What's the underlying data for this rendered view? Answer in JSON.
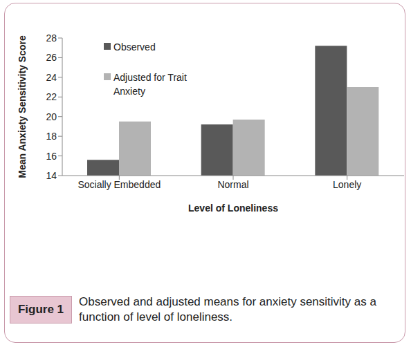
{
  "chart_data": {
    "type": "bar",
    "categories": [
      "Socially Embedded",
      "Normal",
      "Lonely"
    ],
    "series": [
      {
        "name": "Observed",
        "color": "#595959",
        "values": [
          15.6,
          19.2,
          27.2
        ]
      },
      {
        "name": "Adjusted for Trait Anxiety",
        "color": "#b3b3b3",
        "values": [
          19.5,
          19.7,
          23.0
        ]
      }
    ],
    "x_label": "Level of Loneliness",
    "y_label": "Mean Anxiety Sensitivity Score",
    "ylim": [
      14,
      28
    ],
    "yticks": [
      14,
      16,
      18,
      20,
      22,
      24,
      26,
      28
    ],
    "grid": false,
    "legend": "upper left"
  },
  "figure": {
    "label": "Figure 1",
    "caption": "Observed and adjusted means for anxiety sensitivity as a function of level of loneliness."
  }
}
